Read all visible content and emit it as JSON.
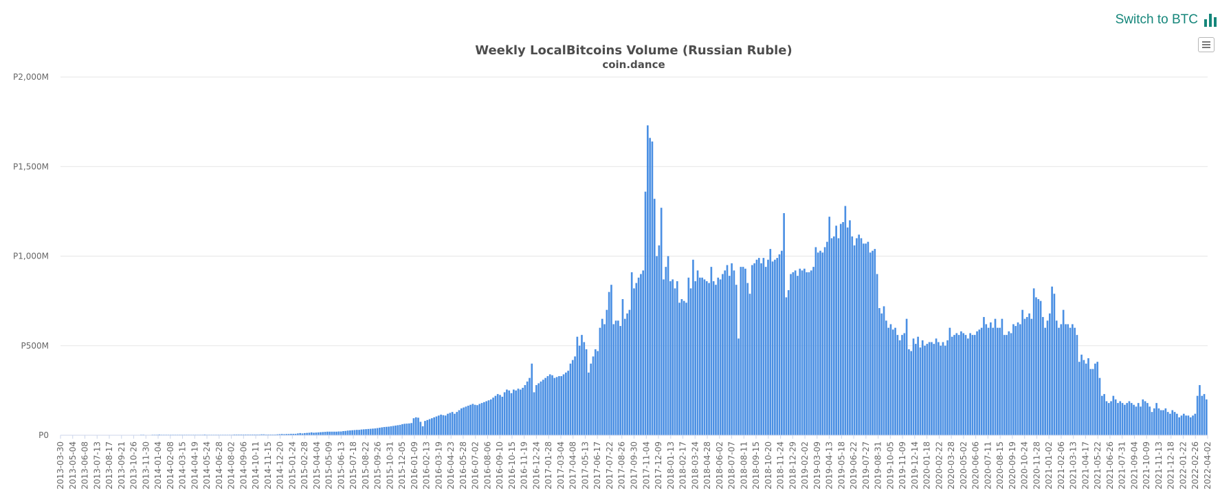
{
  "switch_btc": {
    "label": "Switch to BTC",
    "icon": "bar-chart-icon",
    "color": "#15867a"
  },
  "export_menu": {
    "icon": "hamburger-menu-icon"
  },
  "chart_data": {
    "type": "bar",
    "title": "Weekly LocalBitcoins Volume (Russian Ruble)",
    "subtitle": "coin.dance",
    "xlabel": "",
    "ylabel": "",
    "ylim": [
      0,
      2000
    ],
    "y_unit": "M RUB",
    "y_ticks": [
      "P0",
      "P500M",
      "P1,000M",
      "P1,500M",
      "P2,000M"
    ],
    "y_tick_values": [
      0,
      500,
      1000,
      1500,
      2000
    ],
    "grid": true,
    "bar_color": "#4a8fe3",
    "x_tick_labels": [
      "2013-03-30",
      "2013-05-04",
      "2013-06-08",
      "2013-07-13",
      "2013-08-17",
      "2013-09-21",
      "2013-10-26",
      "2013-11-30",
      "2014-01-04",
      "2014-02-08",
      "2014-03-15",
      "2014-04-19",
      "2014-05-24",
      "2014-06-28",
      "2014-08-02",
      "2014-09-06",
      "2014-10-11",
      "2014-11-15",
      "2014-12-20",
      "2015-01-24",
      "2015-02-28",
      "2015-04-04",
      "2015-05-09",
      "2015-06-13",
      "2015-07-18",
      "2015-08-22",
      "2015-09-26",
      "2015-10-31",
      "2015-12-05",
      "2016-01-09",
      "2016-02-13",
      "2016-03-19",
      "2016-04-23",
      "2016-05-28",
      "2016-07-02",
      "2016-08-06",
      "2016-09-10",
      "2016-10-15",
      "2016-11-19",
      "2016-12-24",
      "2017-01-28",
      "2017-03-04",
      "2017-04-08",
      "2017-05-13",
      "2017-06-17",
      "2017-07-22",
      "2017-08-26",
      "2017-09-30",
      "2017-11-04",
      "2017-12-09",
      "2018-01-13",
      "2018-02-17",
      "2018-03-24",
      "2018-04-28",
      "2018-06-02",
      "2018-07-07",
      "2018-08-11",
      "2018-09-15",
      "2018-10-20",
      "2018-11-24",
      "2018-12-29",
      "2019-02-02",
      "2019-03-09",
      "2019-04-13",
      "2019-05-18",
      "2019-06-22",
      "2019-07-27",
      "2019-08-31",
      "2019-10-05",
      "2019-11-09",
      "2019-12-14",
      "2020-01-18",
      "2020-02-22",
      "2020-03-28",
      "2020-05-02",
      "2020-06-06",
      "2020-07-11",
      "2020-08-15",
      "2020-09-19",
      "2020-10-24",
      "2020-11-28",
      "2021-01-02",
      "2021-02-06",
      "2021-03-13",
      "2021-04-17",
      "2021-05-22",
      "2021-06-26",
      "2021-07-31",
      "2021-09-04",
      "2021-10-09",
      "2021-11-13",
      "2021-12-18",
      "2022-01-22",
      "2022-02-26",
      "2022-04-02"
    ],
    "values": [
      0.5,
      0.5,
      0.5,
      0.5,
      0.5,
      0.6,
      0.6,
      0.7,
      0.7,
      0.7,
      0.8,
      0.8,
      0.8,
      0.9,
      0.9,
      1,
      1,
      1,
      1,
      1,
      1,
      1,
      1,
      1,
      1,
      1,
      1,
      1,
      1,
      1,
      1.5,
      2,
      2,
      2,
      2,
      3,
      3,
      2,
      2,
      2,
      3,
      3,
      3,
      4,
      3,
      3,
      3,
      3,
      3,
      3,
      3,
      3,
      3,
      3,
      3,
      3,
      3,
      3,
      3,
      3,
      3,
      3,
      3,
      4,
      3,
      3,
      3,
      3,
      3,
      3,
      3,
      3,
      3,
      3,
      3,
      3,
      4,
      4,
      4,
      4,
      4,
      4,
      4,
      4,
      4,
      4,
      4,
      4,
      5,
      5,
      4,
      4,
      4,
      4,
      4,
      5,
      6,
      7,
      6,
      7,
      7,
      8,
      8,
      8,
      10,
      12,
      10,
      12,
      13,
      14,
      16,
      14,
      15,
      16,
      17,
      18,
      19,
      20,
      20,
      20,
      20,
      20,
      21,
      21,
      23,
      24,
      26,
      27,
      28,
      29,
      30,
      30,
      32,
      33,
      34,
      35,
      36,
      37,
      38,
      40,
      42,
      44,
      46,
      47,
      48,
      50,
      52,
      54,
      56,
      58,
      62,
      64,
      65,
      66,
      68,
      95,
      100,
      98,
      75,
      50,
      80,
      85,
      90,
      95,
      100,
      105,
      110,
      115,
      112,
      110,
      120,
      125,
      130,
      120,
      130,
      140,
      150,
      155,
      160,
      165,
      170,
      175,
      170,
      168,
      175,
      180,
      185,
      190,
      195,
      200,
      210,
      220,
      230,
      225,
      215,
      240,
      255,
      250,
      235,
      255,
      250,
      260,
      255,
      265,
      280,
      300,
      320,
      400,
      240,
      280,
      290,
      300,
      310,
      320,
      330,
      340,
      335,
      320,
      325,
      330,
      330,
      340,
      350,
      360,
      400,
      420,
      440,
      550,
      500,
      560,
      520,
      480,
      350,
      400,
      440,
      480,
      470,
      600,
      650,
      620,
      700,
      800,
      840,
      620,
      640,
      640,
      610,
      760,
      650,
      680,
      700,
      910,
      820,
      850,
      880,
      900,
      920,
      1360,
      1730,
      1660,
      1640,
      1320,
      1000,
      1060,
      1270,
      870,
      940,
      1000,
      860,
      870,
      820,
      860,
      740,
      760,
      750,
      740,
      880,
      820,
      980,
      860,
      920,
      880,
      880,
      870,
      860,
      850,
      940,
      860,
      840,
      880,
      870,
      900,
      920,
      950,
      890,
      960,
      920,
      840,
      540,
      940,
      940,
      930,
      850,
      790,
      950,
      960,
      980,
      990,
      960,
      990,
      940,
      980,
      1040,
      970,
      980,
      990,
      1010,
      1030,
      1240,
      770,
      810,
      900,
      910,
      920,
      890,
      930,
      920,
      930,
      910,
      910,
      920,
      940,
      1050,
      1020,
      1030,
      1020,
      1050,
      1080,
      1220,
      1100,
      1110,
      1170,
      1100,
      1180,
      1190,
      1280,
      1160,
      1200,
      1110,
      1060,
      1100,
      1120,
      1100,
      1070,
      1070,
      1080,
      1020,
      1030,
      1040,
      900,
      710,
      680,
      720,
      640,
      600,
      620,
      590,
      600,
      560,
      530,
      560,
      570,
      650,
      480,
      470,
      540,
      510,
      550,
      490,
      530,
      500,
      510,
      520,
      520,
      510,
      540,
      520,
      500,
      520,
      500,
      530,
      600,
      550,
      560,
      570,
      560,
      580,
      570,
      560,
      540,
      570,
      560,
      560,
      580,
      590,
      600,
      660,
      620,
      600,
      630,
      600,
      650,
      600,
      600,
      650,
      560,
      560,
      580,
      570,
      620,
      610,
      630,
      620,
      700,
      650,
      660,
      680,
      650,
      820,
      770,
      760,
      750,
      660,
      600,
      640,
      680,
      830,
      790,
      640,
      600,
      620,
      700,
      620,
      620,
      600,
      620,
      600,
      560,
      410,
      450,
      420,
      400,
      430,
      370,
      370,
      400,
      410,
      320,
      220,
      230,
      190,
      180,
      190,
      220,
      200,
      180,
      190,
      180,
      170,
      180,
      190,
      180,
      170,
      160,
      180,
      160,
      200,
      190,
      180,
      160,
      130,
      150,
      180,
      150,
      140,
      140,
      150,
      130,
      120,
      140,
      130,
      120,
      100,
      110,
      120,
      110,
      110,
      100,
      110,
      120,
      220,
      280,
      220,
      230,
      200
    ]
  }
}
